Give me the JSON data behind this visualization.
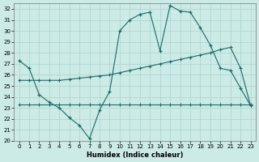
{
  "xlabel": "Humidex (Indice chaleur)",
  "bg_color": "#cceae6",
  "grid_color": "#aad4cf",
  "line_color": "#1a6b65",
  "xlim": [
    -0.5,
    23.5
  ],
  "ylim": [
    20,
    32.5
  ],
  "xticks": [
    0,
    1,
    2,
    3,
    4,
    5,
    6,
    7,
    8,
    9,
    10,
    11,
    12,
    13,
    14,
    15,
    16,
    17,
    18,
    19,
    20,
    21,
    22,
    23
  ],
  "yticks": [
    20,
    21,
    22,
    23,
    24,
    25,
    26,
    27,
    28,
    29,
    30,
    31,
    32
  ],
  "line1_x": [
    0,
    1,
    2,
    3,
    4,
    5,
    6,
    7,
    8,
    9,
    10,
    11,
    12,
    13,
    14,
    15,
    16,
    17,
    18,
    19,
    20,
    21,
    22,
    23
  ],
  "line1_y": [
    27.3,
    26.6,
    24.2,
    23.5,
    23.0,
    22.1,
    21.4,
    20.2,
    22.8,
    24.5,
    30.0,
    31.0,
    31.5,
    31.7,
    28.2,
    32.3,
    31.8,
    31.7,
    30.3,
    28.7,
    26.6,
    26.4,
    24.8,
    23.2
  ],
  "line2_x": [
    0,
    1,
    2,
    3,
    4,
    5,
    6,
    7,
    8,
    9,
    10,
    11,
    12,
    13,
    14,
    15,
    16,
    17,
    18,
    19,
    20,
    21,
    22,
    23
  ],
  "line2_y": [
    25.5,
    25.5,
    25.5,
    25.5,
    25.5,
    25.6,
    25.7,
    25.8,
    25.9,
    26.0,
    26.2,
    26.4,
    26.6,
    26.8,
    27.0,
    27.2,
    27.4,
    27.6,
    27.8,
    28.0,
    28.3,
    28.5,
    26.6,
    23.2
  ],
  "line3_x": [
    0,
    1,
    2,
    3,
    4,
    5,
    6,
    7,
    8,
    9,
    10,
    11,
    12,
    13,
    14,
    15,
    16,
    17,
    18,
    19,
    20,
    21,
    22,
    23
  ],
  "line3_y": [
    23.3,
    23.3,
    23.3,
    23.3,
    23.3,
    23.3,
    23.3,
    23.3,
    23.3,
    23.3,
    23.3,
    23.3,
    23.3,
    23.3,
    23.3,
    23.3,
    23.3,
    23.3,
    23.3,
    23.3,
    23.3,
    23.3,
    23.3,
    23.3
  ]
}
